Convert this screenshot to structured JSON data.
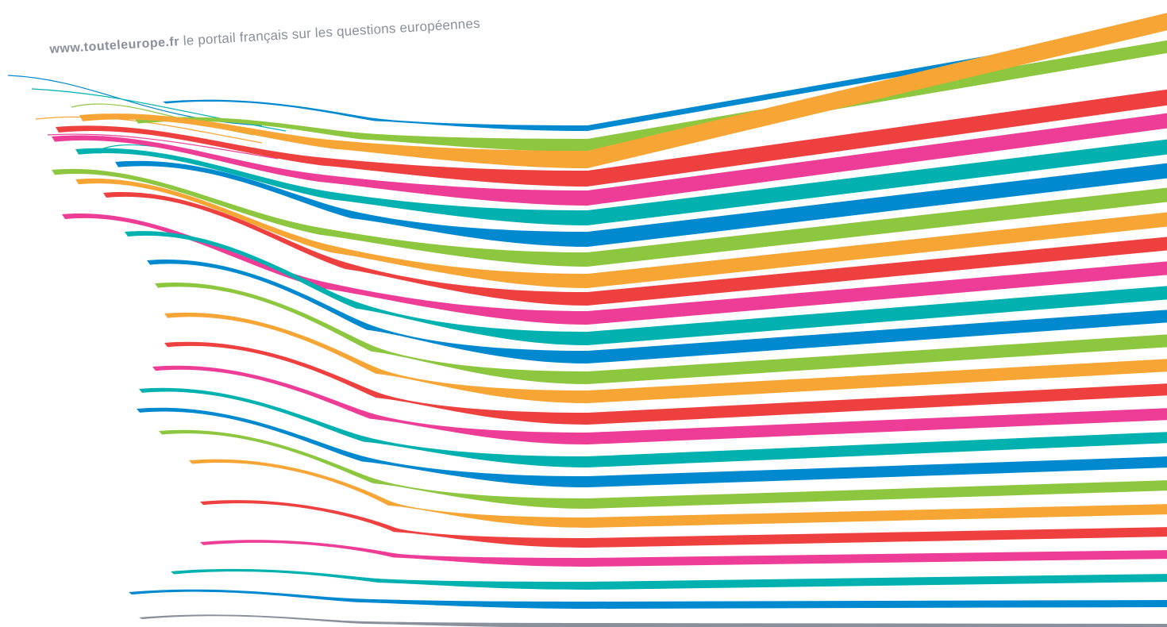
{
  "banner": {
    "site_url": "www.touteleurope.fr",
    "tagline": "le portail français sur les questions européennes",
    "text_color": "#8a8f9c"
  },
  "ribbon_palette": {
    "blue": "#0089cf",
    "green": "#8dc63f",
    "orange": "#f7a535",
    "red": "#ef4040",
    "pink": "#ee3d96",
    "teal": "#00b1b0",
    "gray": "#8a8f9c"
  },
  "ribbon_sequence": [
    "blue",
    "green",
    "orange",
    "red",
    "pink",
    "teal",
    "blue",
    "green",
    "orange",
    "red",
    "pink",
    "teal",
    "blue",
    "green",
    "orange",
    "red",
    "pink",
    "teal",
    "blue",
    "green",
    "orange",
    "red",
    "pink",
    "teal",
    "blue",
    "gray"
  ]
}
